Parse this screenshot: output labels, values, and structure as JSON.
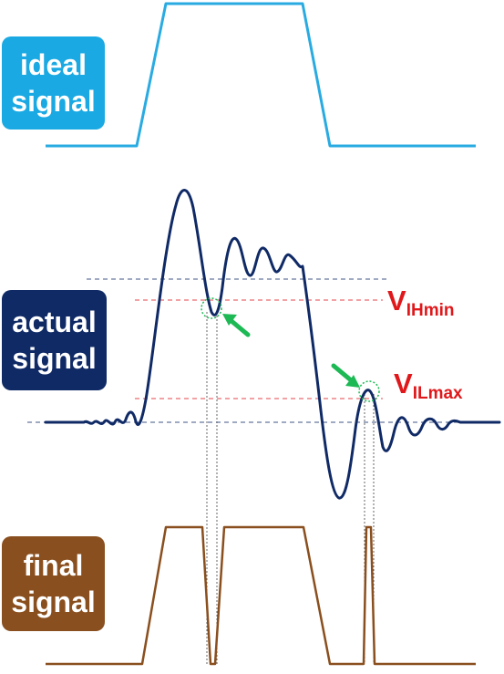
{
  "labels": {
    "ideal": [
      "ideal",
      "signal"
    ],
    "actual": [
      "actual",
      "signal"
    ],
    "final": [
      "final",
      "signal"
    ]
  },
  "thresholds": {
    "vih": {
      "main": "V",
      "sub": "IHmin"
    },
    "vil": {
      "main": "V",
      "sub": "ILmax"
    }
  },
  "colors": {
    "ideal": "#29abe2",
    "actual": "#102a66",
    "final": "#8a4f1e",
    "threshold": "#e0181b",
    "arrow": "#1db954"
  }
}
